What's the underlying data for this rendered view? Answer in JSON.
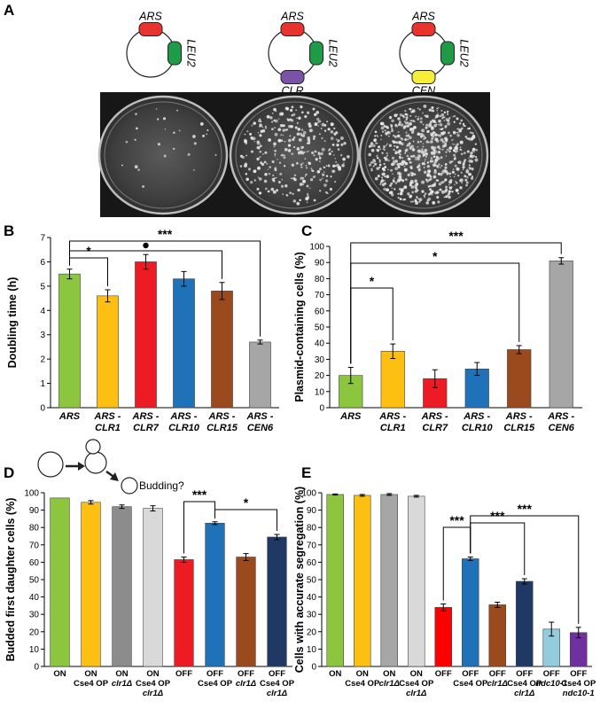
{
  "panelA": {
    "letter": "A",
    "plasmids": [
      {
        "parts": [
          {
            "label": "ARS",
            "color": "#e8332f"
          },
          {
            "label": "LEU2",
            "color": "#1f9a47"
          }
        ]
      },
      {
        "parts": [
          {
            "label": "ARS",
            "color": "#e8332f"
          },
          {
            "label": "LEU2",
            "color": "#1f9a47"
          },
          {
            "label": "CLR",
            "color": "#7a52a6"
          }
        ]
      },
      {
        "parts": [
          {
            "label": "ARS",
            "color": "#e8332f"
          },
          {
            "label": "LEU2",
            "color": "#1f9a47"
          },
          {
            "label": "CEN",
            "color": "#f5ee3a"
          }
        ]
      }
    ],
    "plates": [
      {
        "colony_density": 0.03
      },
      {
        "colony_density": 0.35
      },
      {
        "colony_density": 0.75
      }
    ]
  },
  "chart_data": [
    {
      "panel": "B",
      "type": "bar",
      "ylabel": "Doubling time (h)",
      "ylim": [
        0,
        7
      ],
      "yticks": [
        0,
        1,
        2,
        3,
        4,
        5,
        6,
        7
      ],
      "categories": [
        [
          "ARS"
        ],
        [
          "ARS -",
          "CLR1"
        ],
        [
          "ARS -",
          "CLR7"
        ],
        [
          "ARS -",
          "CLR10"
        ],
        [
          "ARS -",
          "CLR15"
        ],
        [
          "ARS -",
          "CEN6"
        ]
      ],
      "values": [
        5.5,
        4.6,
        6.0,
        5.3,
        4.8,
        2.7
      ],
      "errors": [
        0.2,
        0.25,
        0.3,
        0.3,
        0.35,
        0.08
      ],
      "colors": [
        "#8cc63e",
        "#fdc012",
        "#ed1c24",
        "#1f72b8",
        "#9b4a1e",
        "#a6a6a6"
      ],
      "significance": [
        {
          "from": 0,
          "to": 1,
          "label": "*"
        },
        {
          "from": 0,
          "to": 4,
          "label": "●"
        },
        {
          "from": 0,
          "to": 5,
          "label": "***"
        }
      ]
    },
    {
      "panel": "C",
      "type": "bar",
      "ylabel": "Plasmid-containing cells (%)",
      "ylim": [
        0,
        100
      ],
      "yticks": [
        0,
        10,
        20,
        30,
        40,
        50,
        60,
        70,
        80,
        90,
        100
      ],
      "categories": [
        [
          "ARS"
        ],
        [
          "ARS -",
          "CLR1"
        ],
        [
          "ARS -",
          "CLR7"
        ],
        [
          "ARS -",
          "CLR10"
        ],
        [
          "ARS -",
          "CLR15"
        ],
        [
          "ARS -",
          "CEN6"
        ]
      ],
      "values": [
        20,
        35,
        18,
        24,
        36,
        91
      ],
      "errors": [
        5,
        4.5,
        5.5,
        4,
        2.5,
        2
      ],
      "colors": [
        "#8cc63e",
        "#fdc012",
        "#ed1c24",
        "#1f72b8",
        "#9b4a1e",
        "#a6a6a6"
      ],
      "significance": [
        {
          "from": 0,
          "to": 1,
          "label": "*"
        },
        {
          "from": 0,
          "to": 4,
          "label": "*"
        },
        {
          "from": 0,
          "to": 5,
          "label": "***"
        }
      ]
    },
    {
      "panel": "D",
      "type": "bar",
      "ylabel": "Budded first daughter cells (%)",
      "ylim": [
        0,
        100
      ],
      "yticks": [
        0,
        10,
        20,
        30,
        40,
        50,
        60,
        70,
        80,
        90,
        100
      ],
      "diagram_label": "Budding?",
      "categories": [
        [
          "ON"
        ],
        [
          "ON",
          "Cse4 OP"
        ],
        [
          "ON",
          "clr1Δ"
        ],
        [
          "ON",
          "Cse4 OP",
          "clr1Δ"
        ],
        [
          "OFF"
        ],
        [
          "OFF",
          "Cse4 OP"
        ],
        [
          "OFF",
          "clr1Δ"
        ],
        [
          "OFF",
          "Cse4 OP",
          "clr1Δ"
        ]
      ],
      "values": [
        97,
        94.5,
        92,
        91,
        61.5,
        82.5,
        63,
        74.5
      ],
      "errors": [
        0,
        1,
        1,
        1.5,
        1.5,
        0.8,
        2,
        1.5
      ],
      "colors": [
        "#8cc63e",
        "#fdc012",
        "#8c8c8c",
        "#d9d9d9",
        "#ed1c24",
        "#1f72b8",
        "#9b4a1e",
        "#1f3864"
      ],
      "significance": [
        {
          "from": 4,
          "to": 5,
          "label": "***"
        },
        {
          "from": 5,
          "to": 7,
          "label": "*"
        }
      ]
    },
    {
      "panel": "E",
      "type": "bar",
      "ylabel": "Cells with accurate segregation (%)",
      "ylim": [
        0,
        100
      ],
      "yticks": [
        0,
        10,
        20,
        30,
        40,
        50,
        60,
        70,
        80,
        90,
        100
      ],
      "categories": [
        [
          "ON"
        ],
        [
          "ON",
          "Cse4 OP"
        ],
        [
          "ON",
          "clr1Δ"
        ],
        [
          "ON",
          "Cse4 OP",
          "clr1Δ"
        ],
        [
          "OFF"
        ],
        [
          "OFF",
          "Cse4 OP"
        ],
        [
          "OFF",
          "clr1Δ"
        ],
        [
          "OFF",
          "Cse4 OP",
          "clr1Δ"
        ],
        [
          "OFF",
          "ndc10-1"
        ],
        [
          "OFF",
          "Cse4 OP",
          "ndc10-1"
        ]
      ],
      "values": [
        99,
        98.5,
        99,
        98,
        34,
        62,
        35.5,
        49,
        21.5,
        19.5
      ],
      "errors": [
        0.3,
        0.5,
        0.5,
        0.5,
        2,
        1,
        1.5,
        1.5,
        4,
        3
      ],
      "colors": [
        "#8cc63e",
        "#fdc012",
        "#a6a6a6",
        "#d9d9d9",
        "#ff0000",
        "#1f72b8",
        "#9b4a1e",
        "#1f3864",
        "#93cddd",
        "#7030a0"
      ],
      "significance": [
        {
          "from": 4,
          "to": 5,
          "label": "***"
        },
        {
          "from": 5,
          "to": 7,
          "label": "***"
        },
        {
          "from": 5,
          "to": 9,
          "label": "***"
        }
      ]
    }
  ]
}
